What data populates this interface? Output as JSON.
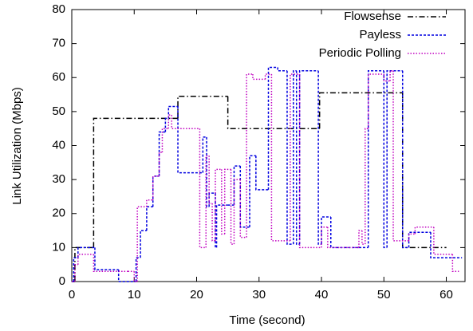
{
  "chart_data": {
    "type": "step-line",
    "x_label": "Time (second)",
    "y_label": "Link Utilization (Mbps)",
    "xlim": [
      0,
      63
    ],
    "ylim": [
      0,
      80
    ],
    "xticks": [
      0,
      10,
      20,
      30,
      40,
      50,
      60
    ],
    "yticks": [
      0,
      10,
      20,
      30,
      40,
      50,
      60,
      70,
      80
    ],
    "grid": false,
    "legend": "upper right",
    "series": [
      {
        "name": "Flowsense",
        "color": "#000000",
        "dash": "7,3,1.5,3",
        "x": [
          0,
          0.5,
          3.5,
          17,
          25,
          39.7,
          53,
          60
        ],
        "values": [
          0,
          10,
          48,
          54.5,
          45,
          55.5,
          10,
          10
        ]
      },
      {
        "name": "Payless",
        "color": "#0000e0",
        "dash": "3,2",
        "x": [
          0,
          0.3,
          1,
          3.7,
          7.5,
          10,
          10.3,
          11,
          12,
          13,
          14,
          15,
          15.5,
          17,
          21,
          21.6,
          22,
          23,
          23.2,
          25,
          26,
          27,
          28.5,
          29.5,
          31.5,
          33,
          34.5,
          35.5,
          36,
          36.5,
          39.5,
          40,
          41.5,
          46,
          47.5,
          50,
          50.5,
          53,
          54,
          57.5,
          62.5
        ],
        "values": [
          0,
          7,
          10,
          3.5,
          0,
          0,
          7,
          15,
          22,
          31,
          44,
          48,
          51.5,
          32,
          42.5,
          22,
          26,
          10,
          22.5,
          22.5,
          34,
          16,
          37,
          27,
          63,
          62,
          11,
          62,
          11,
          62,
          11,
          19,
          10,
          10,
          62,
          10,
          62,
          10,
          14.5,
          7,
          7
        ]
      },
      {
        "name": "Periodic Polling",
        "color": "#c000c0",
        "dash": "1.5,2",
        "x": [
          0,
          0.5,
          1,
          3.5,
          9,
          10,
          10.5,
          12,
          13,
          14,
          14.5,
          15.5,
          16,
          20.5,
          21.5,
          22,
          22.5,
          23,
          24,
          24.5,
          25.5,
          26,
          27,
          28,
          29,
          31,
          32,
          35,
          36.5,
          40,
          41,
          46,
          46.5,
          47,
          47.5,
          50,
          51,
          51.5,
          54,
          55,
          58,
          61,
          62
        ],
        "values": [
          0,
          5,
          8,
          3,
          3,
          0,
          22,
          24,
          31,
          38,
          45,
          49,
          45,
          10,
          37,
          23,
          12,
          33,
          14,
          33,
          11,
          30,
          13,
          61,
          59.5,
          61,
          12,
          61,
          10,
          16,
          10,
          15,
          11,
          45,
          61,
          59,
          62,
          12,
          14,
          16,
          8,
          3,
          3
        ]
      }
    ]
  }
}
